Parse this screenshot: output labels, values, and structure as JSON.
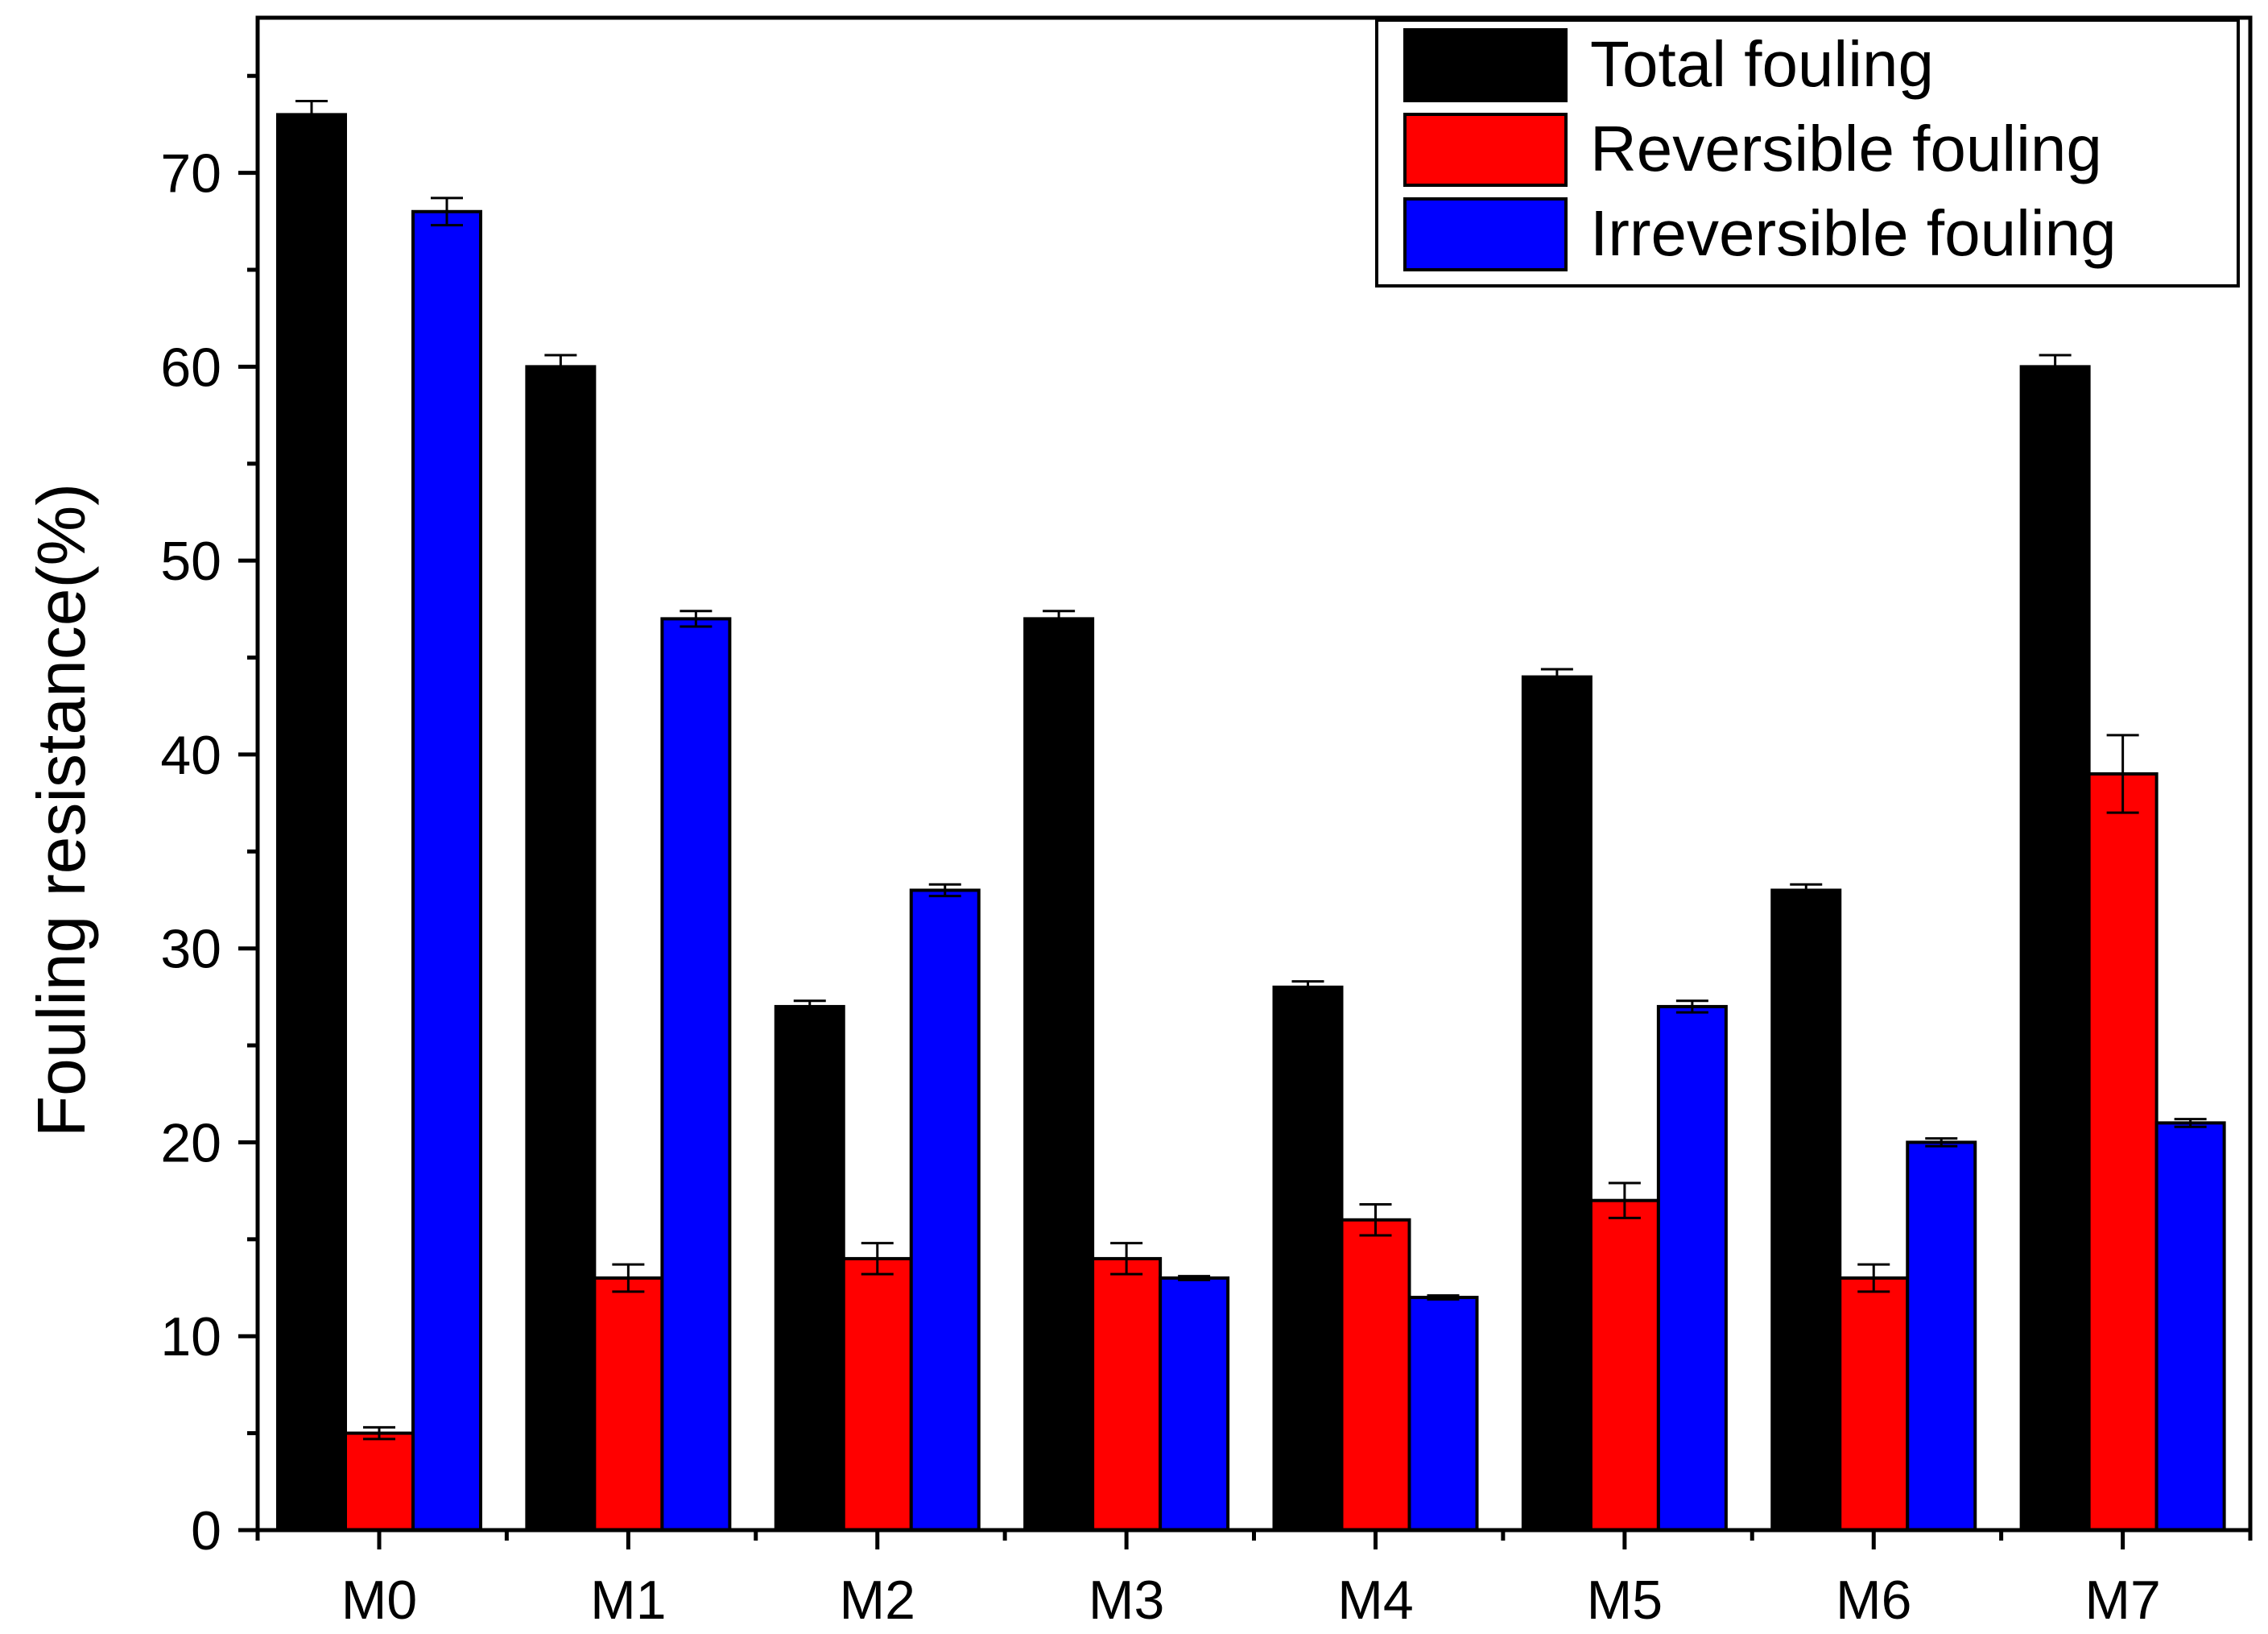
{
  "chart_data": {
    "type": "bar",
    "title": "",
    "xlabel": "",
    "ylabel": "Fouling resistance(%)",
    "ylim": [
      0,
      78
    ],
    "yticks": [
      0,
      10,
      20,
      30,
      40,
      50,
      60,
      70
    ],
    "grid": false,
    "legend_position": "top-right",
    "categories": [
      "M0",
      "M1",
      "M2",
      "M3",
      "M4",
      "M5",
      "M6",
      "M7"
    ],
    "series": [
      {
        "name": "Total fouling",
        "color": "#000000",
        "values": [
          73,
          60,
          27,
          47,
          28,
          44,
          33,
          60
        ],
        "errors": [
          0.7,
          0.6,
          0.3,
          0.4,
          0.3,
          0.4,
          0.3,
          0.6
        ]
      },
      {
        "name": "Reversible fouling",
        "color": "#ff0000",
        "values": [
          5,
          13,
          14,
          14,
          16,
          17,
          13,
          39
        ],
        "errors": [
          0.3,
          0.7,
          0.8,
          0.8,
          0.8,
          0.9,
          0.7,
          2.0
        ]
      },
      {
        "name": "Irreversible fouling",
        "color": "#0000ff",
        "values": [
          68,
          47,
          33,
          13,
          12,
          27,
          20,
          21
        ],
        "errors": [
          0.7,
          0.4,
          0.3,
          0.1,
          0.1,
          0.3,
          0.2,
          0.2
        ]
      }
    ]
  }
}
